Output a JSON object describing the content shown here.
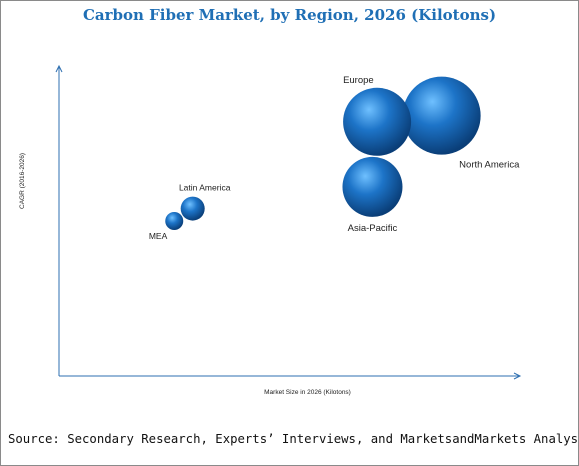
{
  "title": "Carbon Fiber Market, by Region, 2026 (Kilotons)",
  "source": "Source: Secondary Research, Experts’ Interviews, and MarketsandMarkets Analysis",
  "colors": {
    "axis": "#2e6fb0",
    "bubble_light": "#6fc0ff",
    "bubble_mid": "#1d74c8",
    "bubble_dark": "#0a3e78",
    "title": "#1f6fb5"
  },
  "chart_data": {
    "type": "scatter",
    "title": "Carbon Fiber Market, by Region, 2026 (Kilotons)",
    "xlabel": "Market Size in 2026 (Kilotons)",
    "ylabel": "CAGR (2016-2026)",
    "xlim": [
      0,
      100
    ],
    "ylim": [
      0,
      100
    ],
    "grid": false,
    "legend": "none",
    "points": [
      {
        "label": "Europe",
        "x": 69,
        "y": 82,
        "size": 34,
        "label_side": "top-left"
      },
      {
        "label": "North America",
        "x": 83,
        "y": 84,
        "size": 39,
        "label_side": "bottom-right"
      },
      {
        "label": "Asia-Pacific",
        "x": 68,
        "y": 61,
        "size": 30,
        "label_side": "bottom"
      },
      {
        "label": "Latin America",
        "x": 29,
        "y": 54,
        "size": 12,
        "label_side": "top"
      },
      {
        "label": "MEA",
        "x": 25,
        "y": 50,
        "size": 9,
        "label_side": "left-bottom"
      }
    ]
  }
}
